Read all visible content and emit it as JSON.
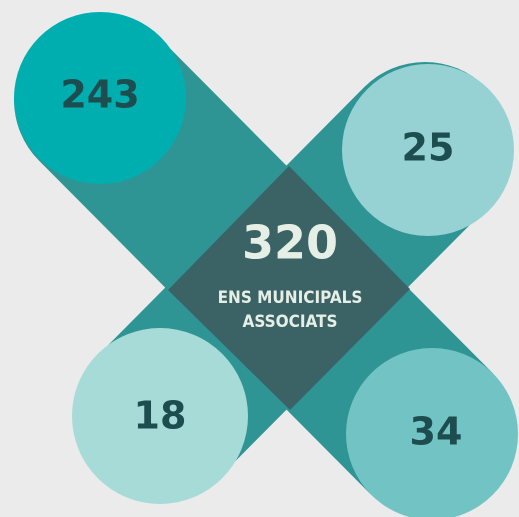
{
  "center": {
    "value": 320,
    "label": [
      "ENS MUNICIPALS",
      "ASSOCIATS"
    ]
  },
  "items": [
    {
      "value": 243
    },
    {
      "value": 25
    },
    {
      "value": 18
    },
    {
      "value": 34
    }
  ]
}
